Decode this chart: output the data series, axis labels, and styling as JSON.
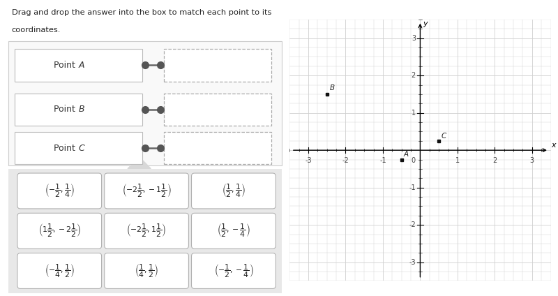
{
  "title_line1": "Drag and drop the answer into the box to match each point to its",
  "title_line2": "coordinates.",
  "points": {
    "A": [
      -0.5,
      -0.25
    ],
    "B": [
      -2.5,
      1.5
    ],
    "C": [
      0.5,
      0.25
    ]
  },
  "point_label_offsets": {
    "A": [
      0.06,
      0.04
    ],
    "B": [
      0.07,
      0.07
    ],
    "C": [
      0.06,
      0.04
    ]
  },
  "axis_range": [
    -3.5,
    3.5
  ],
  "axis_ticks": [
    -3,
    -2,
    -1,
    1,
    2,
    3
  ],
  "grid_color": "#d0d0d0",
  "background_color": "#ffffff",
  "point_color": "#222222",
  "point_labels": [
    "Point A",
    "Point B",
    "Point C"
  ],
  "answer_texts_row0": [
    "$\\left(-\\dfrac{1}{2}, \\dfrac{1}{4}\\right)$",
    "$\\left(-2\\dfrac{1}{2}, -1\\dfrac{1}{2}\\right)$",
    "$\\left(\\dfrac{1}{2}, \\dfrac{1}{4}\\right)$"
  ],
  "answer_texts_row1": [
    "$\\left(1\\dfrac{1}{2}, -2\\dfrac{1}{2}\\right)$",
    "$\\left(-2\\dfrac{1}{2}, 1\\dfrac{1}{2}\\right)$",
    "$\\left(\\dfrac{1}{2}, -\\dfrac{1}{4}\\right)$"
  ],
  "answer_texts_row2": [
    "$\\left(-\\dfrac{1}{4}, \\dfrac{1}{2}\\right)$",
    "$\\left(\\dfrac{1}{4}, \\dfrac{1}{2}\\right)$",
    "$\\left(-\\dfrac{1}{2}, -\\dfrac{1}{4}\\right)$"
  ]
}
